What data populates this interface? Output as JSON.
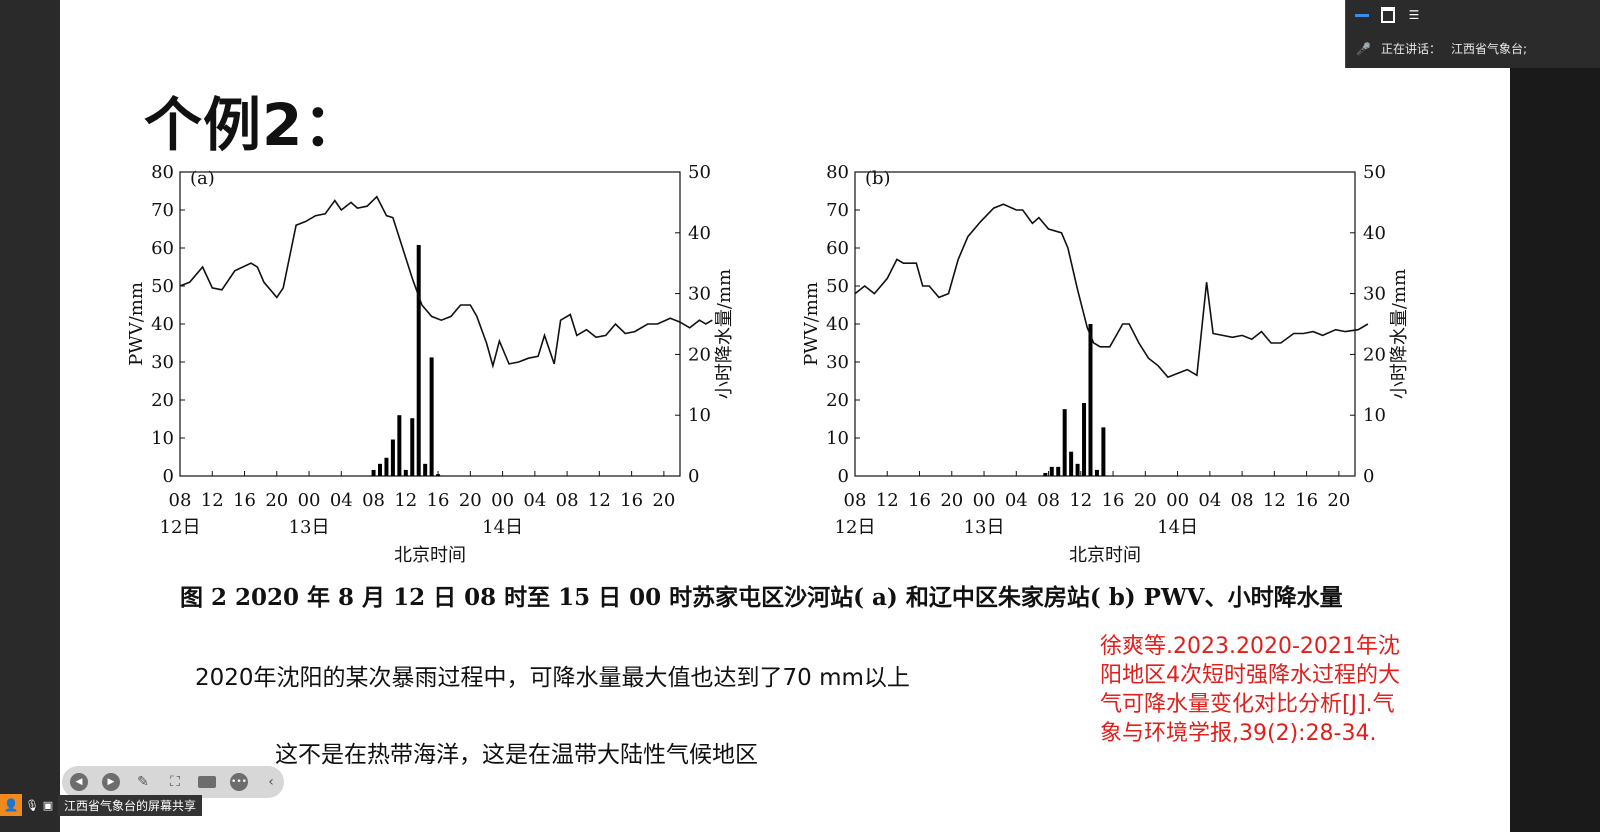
{
  "slide": {
    "title": "个例2：",
    "caption": "图 2    2020 年 8 月 12 日 08 时至 15 日 00 时苏家屯区沙河站( a) 和辽中区朱家房站( b) PWV、小时降水量",
    "body_line1": "2020年沈阳的某次暴雨过程中，可降水量最大值也达到了70 mm以上",
    "body_line2": "这不是在热带海洋，这是在温带大陆性气候地区",
    "citation": "徐爽等.2023.2020-2021年沈阳地区4次短时强降水过程的大气可降水量变化对比分析[J].气象与环境学报,39(2):28-34."
  },
  "meeting": {
    "speaking_label": "正在讲话：",
    "speaker": "江西省气象台;",
    "share_label": "江西省气象台的屏幕共享"
  },
  "icons": {
    "top_panel": [
      "minimize-icon",
      "window-icon",
      "menu-icon"
    ],
    "toolbar": [
      "prev-icon",
      "next-icon",
      "pen-icon",
      "screenshot-icon",
      "camera-icon",
      "more-icon",
      "collapse-icon"
    ]
  },
  "colors": {
    "citation": "#e0201c",
    "share_user": "#f18a1e",
    "meeting_accent": "#3a8ee6"
  },
  "chart_data": [
    {
      "type": "line+bar",
      "panel_label": "(a)",
      "ylabel_left": "PWV/mm",
      "ylabel_right": "小时降水量/mm",
      "xlabel": "北京时间",
      "ylim_left": [
        0,
        80
      ],
      "ylim_right": [
        0,
        50
      ],
      "yticks_left": [
        "0",
        "10",
        "20",
        "30",
        "40",
        "50",
        "60",
        "70",
        "80"
      ],
      "yticks_right": [
        "0",
        "10",
        "20",
        "30",
        "40",
        "50"
      ],
      "xticks": [
        "08",
        "12",
        "16",
        "20",
        "00",
        "04",
        "08",
        "12",
        "16",
        "20",
        "00",
        "04",
        "08",
        "12",
        "16",
        "20"
      ],
      "date_labels": [
        {
          "label": "12日",
          "tick": 0
        },
        {
          "label": "13日",
          "tick": 4
        },
        {
          "label": "14日",
          "tick": 10
        }
      ],
      "pwv": [
        [
          0,
          50
        ],
        [
          0.3,
          51
        ],
        [
          0.7,
          55
        ],
        [
          1,
          49.5
        ],
        [
          1.3,
          49
        ],
        [
          1.7,
          54
        ],
        [
          2.2,
          56
        ],
        [
          2.4,
          55
        ],
        [
          2.6,
          51
        ],
        [
          3,
          47
        ],
        [
          3.2,
          49.5
        ],
        [
          3.6,
          66
        ],
        [
          3.9,
          67
        ],
        [
          4.2,
          68.5
        ],
        [
          4.5,
          69
        ],
        [
          4.8,
          72.5
        ],
        [
          5.0,
          70
        ],
        [
          5.3,
          72
        ],
        [
          5.5,
          70.5
        ],
        [
          5.8,
          71
        ],
        [
          6.1,
          73.5
        ],
        [
          6.4,
          68.5
        ],
        [
          6.6,
          68
        ],
        [
          6.9,
          60
        ],
        [
          7.2,
          52
        ],
        [
          7.5,
          45
        ],
        [
          7.8,
          42
        ],
        [
          8.1,
          41
        ],
        [
          8.4,
          42
        ],
        [
          8.7,
          45
        ],
        [
          9.0,
          45
        ],
        [
          9.2,
          42
        ],
        [
          9.5,
          35
        ],
        [
          9.7,
          29
        ],
        [
          9.9,
          35.5
        ],
        [
          10.2,
          29.5
        ],
        [
          10.5,
          30
        ],
        [
          10.8,
          31
        ],
        [
          11.1,
          31.5
        ],
        [
          11.3,
          37
        ],
        [
          11.6,
          29.5
        ],
        [
          11.8,
          41
        ],
        [
          12.1,
          42.5
        ],
        [
          12.3,
          37
        ],
        [
          12.6,
          38.5
        ],
        [
          12.9,
          36.5
        ],
        [
          13.2,
          37
        ],
        [
          13.5,
          40
        ],
        [
          13.8,
          37.5
        ],
        [
          14.1,
          38
        ],
        [
          14.5,
          40
        ],
        [
          14.8,
          40
        ],
        [
          15.2,
          41.5
        ],
        [
          15.5,
          40.5
        ],
        [
          15.8,
          39
        ],
        [
          16.1,
          41
        ],
        [
          16.3,
          40
        ],
        [
          16.5,
          41
        ]
      ],
      "rain": [
        [
          6.0,
          1
        ],
        [
          6.2,
          2
        ],
        [
          6.4,
          3
        ],
        [
          6.6,
          6
        ],
        [
          6.8,
          10
        ],
        [
          7.0,
          1
        ],
        [
          7.2,
          9.5
        ],
        [
          7.4,
          38
        ],
        [
          7.6,
          2
        ],
        [
          7.8,
          19.5
        ],
        [
          8.0,
          0.3
        ]
      ]
    },
    {
      "type": "line+bar",
      "panel_label": "(b)",
      "ylabel_left": "PWV/mm",
      "ylabel_right": "小时降水量/mm",
      "xlabel": "北京时间",
      "ylim_left": [
        0,
        80
      ],
      "ylim_right": [
        0,
        50
      ],
      "yticks_left": [
        "0",
        "10",
        "20",
        "30",
        "40",
        "50",
        "60",
        "70",
        "80"
      ],
      "yticks_right": [
        "0",
        "10",
        "20",
        "30",
        "40",
        "50"
      ],
      "xticks": [
        "08",
        "12",
        "16",
        "20",
        "00",
        "04",
        "08",
        "12",
        "16",
        "20",
        "00",
        "04",
        "08",
        "12",
        "16",
        "20"
      ],
      "date_labels": [
        {
          "label": "12日",
          "tick": 0
        },
        {
          "label": "13日",
          "tick": 4
        },
        {
          "label": "14日",
          "tick": 10
        }
      ],
      "pwv": [
        [
          0,
          48
        ],
        [
          0.3,
          50
        ],
        [
          0.6,
          48
        ],
        [
          1,
          52
        ],
        [
          1.3,
          57
        ],
        [
          1.5,
          56
        ],
        [
          1.9,
          56
        ],
        [
          2.1,
          50
        ],
        [
          2.3,
          50
        ],
        [
          2.6,
          47
        ],
        [
          2.9,
          48
        ],
        [
          3.2,
          57
        ],
        [
          3.5,
          63
        ],
        [
          3.9,
          67
        ],
        [
          4.3,
          70.5
        ],
        [
          4.6,
          71.5
        ],
        [
          5.0,
          70
        ],
        [
          5.2,
          70
        ],
        [
          5.5,
          66.5
        ],
        [
          5.7,
          68
        ],
        [
          6.0,
          65
        ],
        [
          6.4,
          64
        ],
        [
          6.6,
          60
        ],
        [
          6.9,
          49
        ],
        [
          7.2,
          39
        ],
        [
          7.4,
          35
        ],
        [
          7.6,
          34
        ],
        [
          7.9,
          34
        ],
        [
          8.1,
          37
        ],
        [
          8.3,
          40
        ],
        [
          8.5,
          40
        ],
        [
          8.8,
          35
        ],
        [
          9.1,
          31
        ],
        [
          9.4,
          29
        ],
        [
          9.7,
          26
        ],
        [
          10.0,
          27
        ],
        [
          10.3,
          28
        ],
        [
          10.6,
          26.5
        ],
        [
          10.9,
          51
        ],
        [
          11.1,
          37.5
        ],
        [
          11.4,
          37
        ],
        [
          11.7,
          36.5
        ],
        [
          12.0,
          37
        ],
        [
          12.3,
          36
        ],
        [
          12.6,
          38
        ],
        [
          12.9,
          35
        ],
        [
          13.2,
          35
        ],
        [
          13.6,
          37.5
        ],
        [
          13.9,
          37.5
        ],
        [
          14.2,
          38
        ],
        [
          14.5,
          37
        ],
        [
          14.9,
          38.5
        ],
        [
          15.2,
          38
        ],
        [
          15.6,
          38.5
        ],
        [
          15.9,
          40
        ]
      ],
      "rain": [
        [
          5.9,
          0.5
        ],
        [
          6.1,
          1.5
        ],
        [
          6.3,
          1.5
        ],
        [
          6.5,
          11
        ],
        [
          6.7,
          4
        ],
        [
          6.9,
          2
        ],
        [
          7.1,
          12
        ],
        [
          7.3,
          25
        ],
        [
          7.5,
          1
        ],
        [
          7.7,
          8
        ]
      ]
    }
  ]
}
